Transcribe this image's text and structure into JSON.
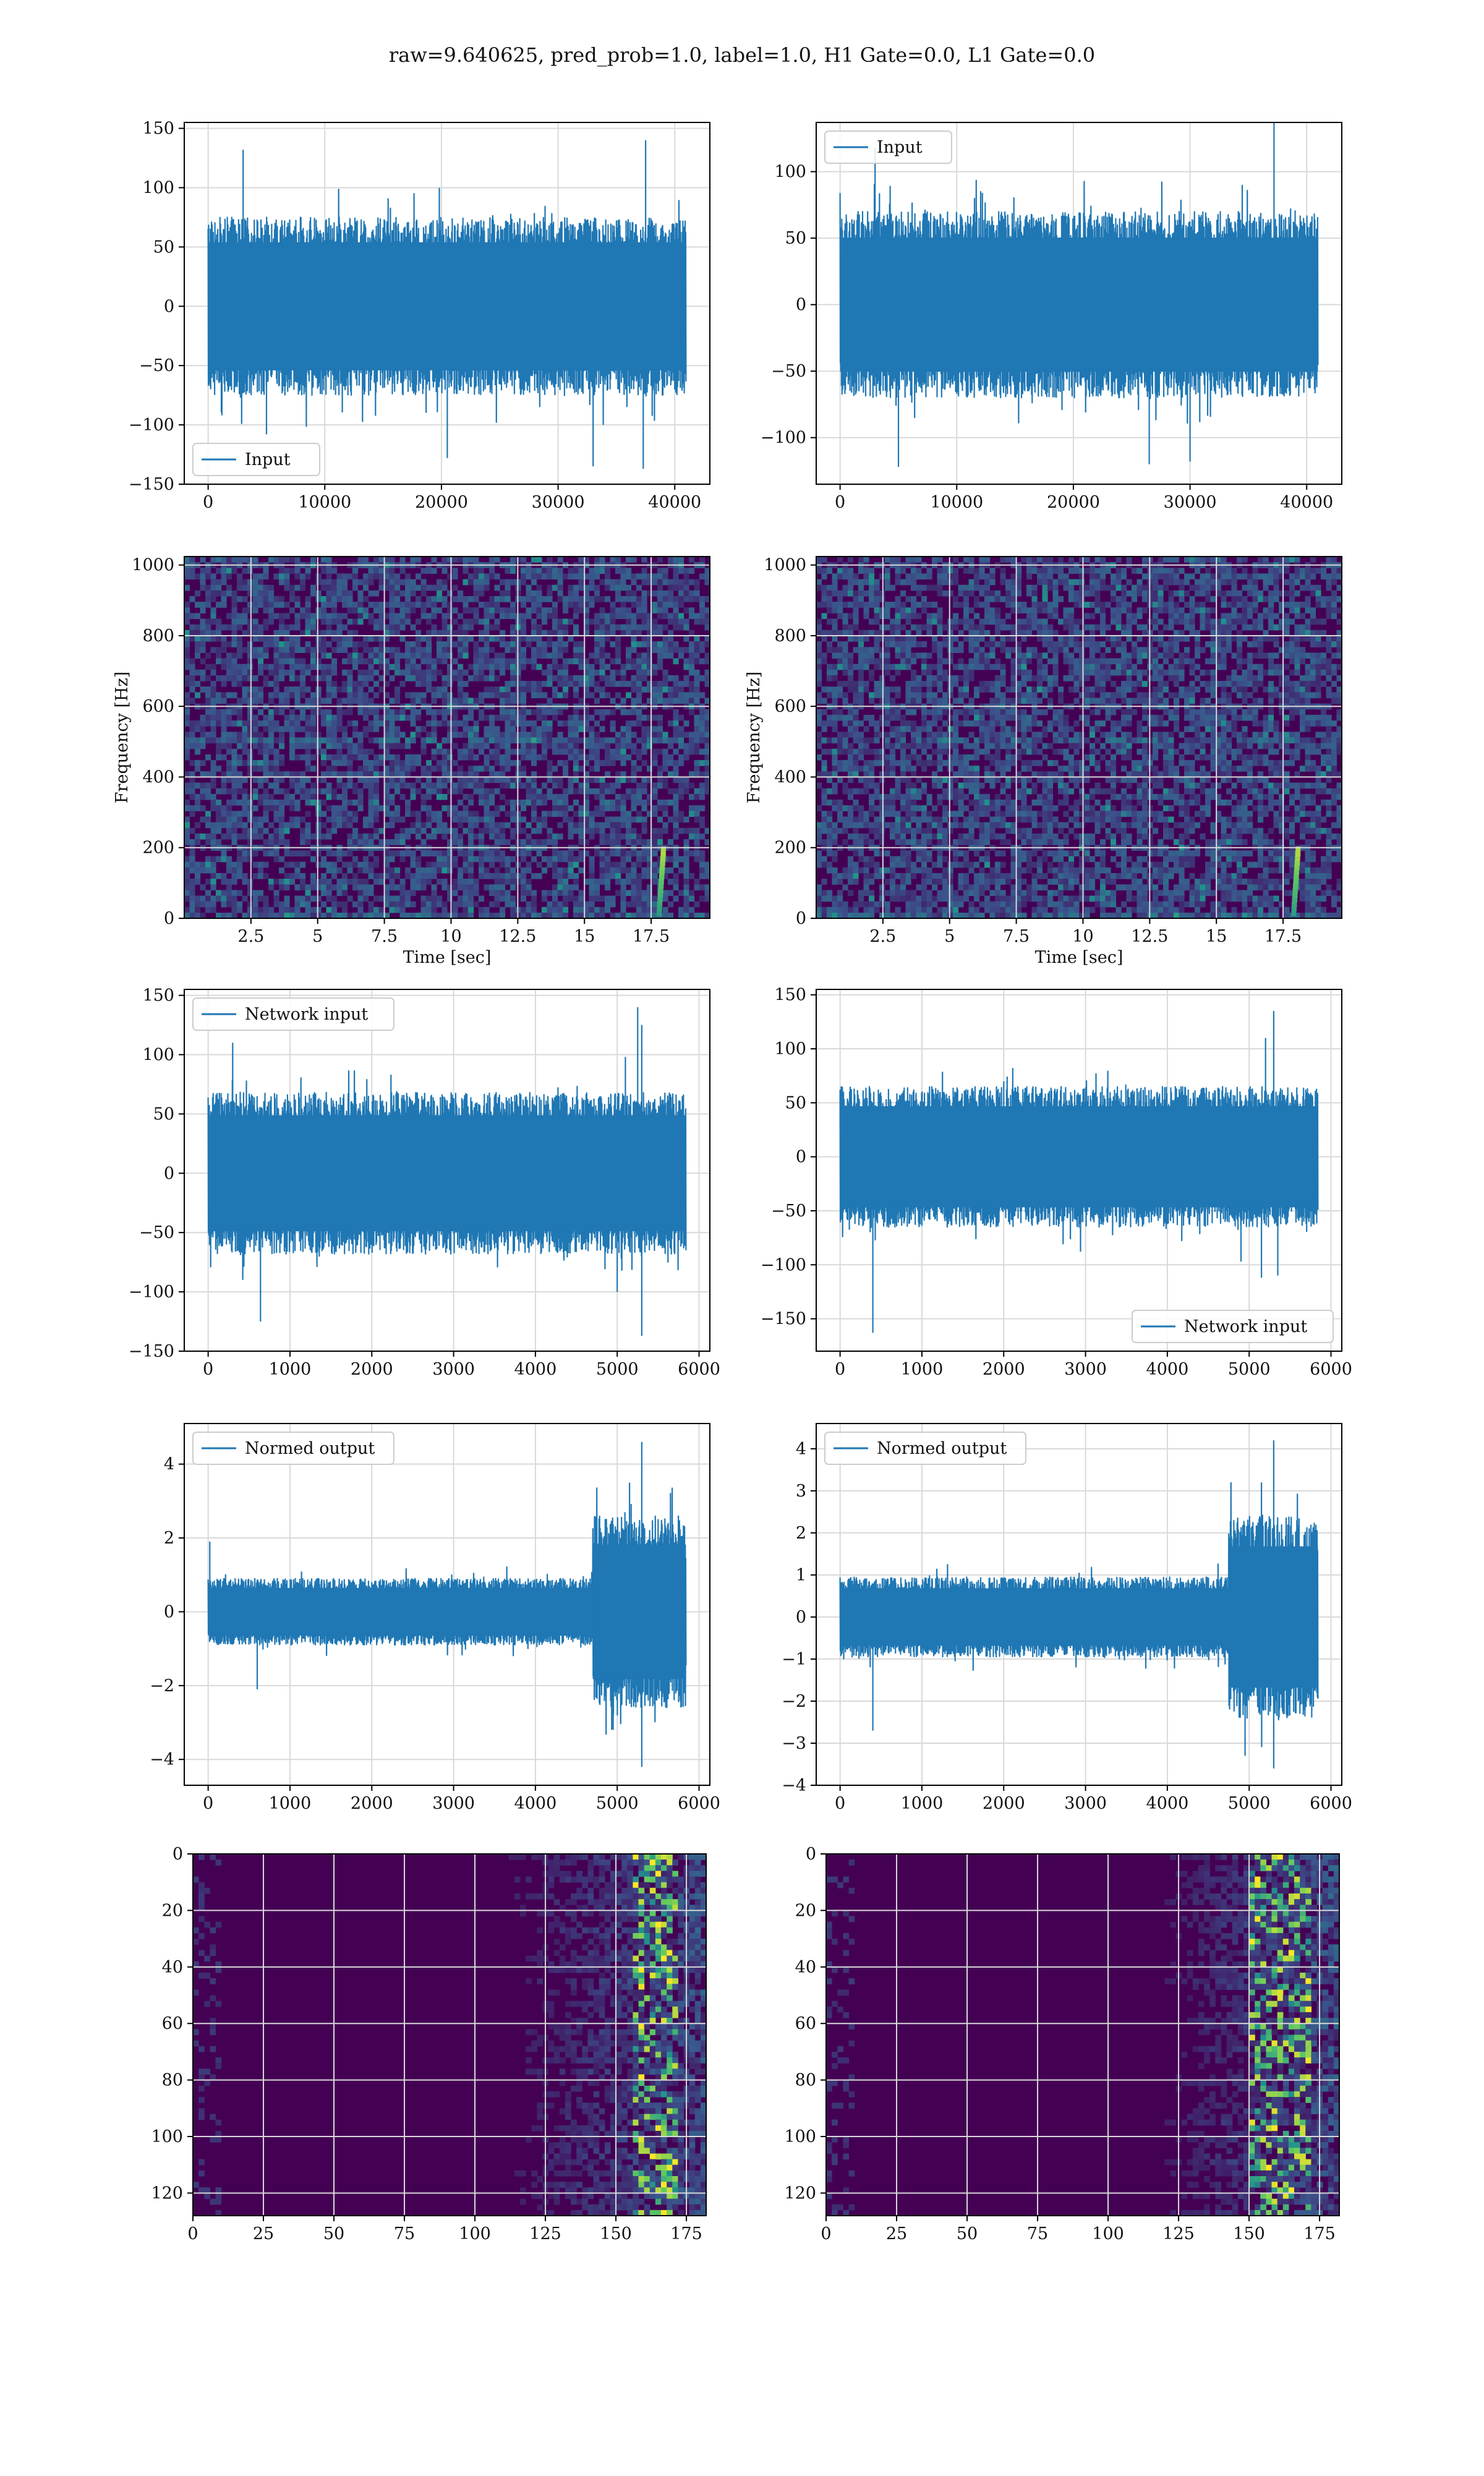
{
  "figure": {
    "suptitle": "raw=9.640625, pred_prob=1.0, label=1.0, H1 Gate=0.0, L1 Gate=0.0",
    "colors": {
      "line": "#1f77b4",
      "grid": "#d9d9d9",
      "viridis_low": "#440154",
      "viridis_high": "#fde725"
    }
  },
  "chart_data": [
    {
      "id": "h1_input",
      "type": "line",
      "series": [
        {
          "name": "Input",
          "x_range": [
            0,
            40960
          ],
          "envelope": 75,
          "spikes": [
            [
              3000,
              132
            ],
            [
              37500,
              140
            ],
            [
              20500,
              -128
            ],
            [
              33000,
              -135
            ],
            [
              37300,
              -137
            ],
            [
              5000,
              -108
            ]
          ]
        }
      ],
      "xlim": [
        -2048,
        43008
      ],
      "ylim": [
        -150,
        155
      ],
      "xticks": [
        0,
        10000,
        20000,
        30000,
        40000
      ],
      "yticks": [
        -150,
        -100,
        -50,
        0,
        50,
        100,
        150
      ],
      "legend": "lower left",
      "grid": true
    },
    {
      "id": "l1_input",
      "type": "line",
      "series": [
        {
          "name": "Input",
          "x_range": [
            0,
            40960
          ],
          "envelope": 70,
          "spikes": [
            [
              3000,
              118
            ],
            [
              37200,
              137
            ],
            [
              5000,
              -122
            ],
            [
              26500,
              -120
            ],
            [
              30000,
              -118
            ]
          ]
        }
      ],
      "xlim": [
        -2048,
        43008
      ],
      "ylim": [
        -135,
        137
      ],
      "xticks": [
        0,
        10000,
        20000,
        30000,
        40000
      ],
      "yticks": [
        -100,
        -50,
        0,
        50,
        100
      ],
      "legend": "upper left",
      "grid": true
    },
    {
      "id": "h1_spec",
      "type": "heatmap",
      "xlabel": "Time [sec]",
      "ylabel": "Frequency [Hz]",
      "xlim": [
        0,
        19.7
      ],
      "ylim": [
        0,
        1024
      ],
      "xticks": [
        2.5,
        5.0,
        7.5,
        10.0,
        12.5,
        15.0,
        17.5
      ],
      "yticks": [
        0,
        200,
        400,
        600,
        800,
        1000
      ],
      "chirp_time": 17.9,
      "grid": true
    },
    {
      "id": "l1_spec",
      "type": "heatmap",
      "xlabel": "Time [sec]",
      "ylabel": "Frequency [Hz]",
      "xlim": [
        0,
        19.7
      ],
      "ylim": [
        0,
        1024
      ],
      "xticks": [
        2.5,
        5.0,
        7.5,
        10.0,
        12.5,
        15.0,
        17.5
      ],
      "yticks": [
        0,
        200,
        400,
        600,
        800,
        1000
      ],
      "chirp_time": 18.0,
      "grid": true
    },
    {
      "id": "h1_network_input",
      "type": "line",
      "series": [
        {
          "name": "Network input",
          "x_range": [
            0,
            5840
          ],
          "envelope": 68,
          "spikes": [
            [
              5250,
              140
            ],
            [
              5300,
              125
            ],
            [
              5100,
              98
            ],
            [
              640,
              -125
            ],
            [
              5300,
              -137
            ],
            [
              5000,
              -100
            ],
            [
              300,
              110
            ]
          ]
        }
      ],
      "xlim": [
        -292,
        6132
      ],
      "ylim": [
        -150,
        155
      ],
      "xticks": [
        0,
        1000,
        2000,
        3000,
        4000,
        5000,
        6000
      ],
      "yticks": [
        -150,
        -100,
        -50,
        0,
        50,
        100,
        150
      ],
      "legend": "upper left",
      "grid": true
    },
    {
      "id": "l1_network_input",
      "type": "line",
      "series": [
        {
          "name": "Network input",
          "x_range": [
            0,
            5840
          ],
          "envelope": 65,
          "spikes": [
            [
              5300,
              135
            ],
            [
              5200,
              110
            ],
            [
              400,
              -163
            ],
            [
              5150,
              -112
            ],
            [
              5350,
              -110
            ],
            [
              4900,
              -97
            ]
          ]
        }
      ],
      "xlim": [
        -292,
        6132
      ],
      "ylim": [
        -180,
        155
      ],
      "xticks": [
        0,
        1000,
        2000,
        3000,
        4000,
        5000,
        6000
      ],
      "yticks": [
        -150,
        -100,
        -50,
        0,
        50,
        100,
        150
      ],
      "legend": "lower right",
      "grid": true
    },
    {
      "id": "h1_normed",
      "type": "line",
      "series": [
        {
          "name": "Normed output",
          "x_range": [
            0,
            5840
          ],
          "envelope": 0.9,
          "burst": [
            4700,
            5840,
            2.6
          ],
          "spikes": [
            [
              5300,
              4.6
            ],
            [
              5150,
              3.5
            ],
            [
              5300,
              -4.2
            ],
            [
              4950,
              -3.2
            ],
            [
              600,
              -2.1
            ],
            [
              20,
              1.9
            ]
          ]
        }
      ],
      "xlim": [
        -292,
        6132
      ],
      "ylim": [
        -4.7,
        5.1
      ],
      "xticks": [
        0,
        1000,
        2000,
        3000,
        4000,
        5000,
        6000
      ],
      "yticks": [
        -4,
        -2,
        0,
        2,
        4
      ],
      "legend": "upper left",
      "grid": true
    },
    {
      "id": "l1_normed",
      "type": "line",
      "series": [
        {
          "name": "Normed output",
          "x_range": [
            0,
            5840
          ],
          "envelope": 0.95,
          "burst": [
            4750,
            5840,
            2.4
          ],
          "spikes": [
            [
              5300,
              4.2
            ],
            [
              5150,
              3.2
            ],
            [
              5300,
              -3.6
            ],
            [
              4950,
              -3.3
            ],
            [
              400,
              -2.7
            ]
          ]
        }
      ],
      "xlim": [
        -292,
        6132
      ],
      "ylim": [
        -4.0,
        4.6
      ],
      "xticks": [
        0,
        1000,
        2000,
        3000,
        4000,
        5000,
        6000
      ],
      "yticks": [
        -4,
        -3,
        -2,
        -1,
        0,
        1,
        2,
        3,
        4
      ],
      "legend": "upper left",
      "grid": true
    },
    {
      "id": "h1_features",
      "type": "heatmap",
      "xlim": [
        0,
        182
      ],
      "ylim": [
        0,
        128
      ],
      "y_inverted": true,
      "xticks": [
        0,
        25,
        50,
        75,
        100,
        125,
        150,
        175
      ],
      "yticks": [
        0,
        20,
        40,
        60,
        80,
        100,
        120
      ],
      "activity_start": 100,
      "hot_band": [
        155,
        170
      ],
      "grid": true
    },
    {
      "id": "l1_features",
      "type": "heatmap",
      "xlim": [
        0,
        182
      ],
      "ylim": [
        0,
        128
      ],
      "y_inverted": true,
      "xticks": [
        0,
        25,
        50,
        75,
        100,
        125,
        150,
        175
      ],
      "yticks": [
        0,
        20,
        40,
        60,
        80,
        100,
        120
      ],
      "activity_start": 110,
      "hot_band": [
        150,
        170
      ],
      "grid": true
    }
  ]
}
